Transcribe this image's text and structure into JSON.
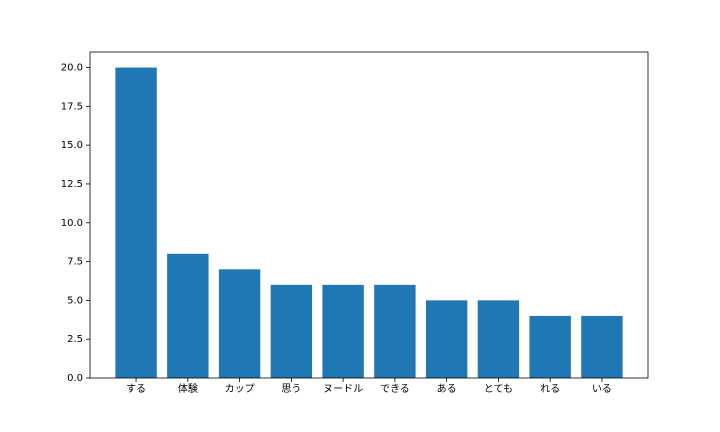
{
  "chart_data": {
    "type": "bar",
    "categories": [
      "する",
      "体験",
      "カップ",
      "思う",
      "ヌードル",
      "できる",
      "ある",
      "とても",
      "れる",
      "いる"
    ],
    "values": [
      20,
      8,
      7,
      6,
      6,
      6,
      5,
      5,
      4,
      4
    ],
    "color": "#1f77b4",
    "ylim": [
      0,
      21
    ],
    "yticks": [
      {
        "value": 0,
        "label": "0.0"
      },
      2.5,
      {
        "value": 5,
        "label": "5.0"
      },
      7.5,
      {
        "value": 10,
        "label": "10.0"
      },
      12.5,
      {
        "value": 15,
        "label": "15.0"
      },
      17.5,
      {
        "value": 20,
        "label": "20.0"
      }
    ],
    "grid": false
  }
}
